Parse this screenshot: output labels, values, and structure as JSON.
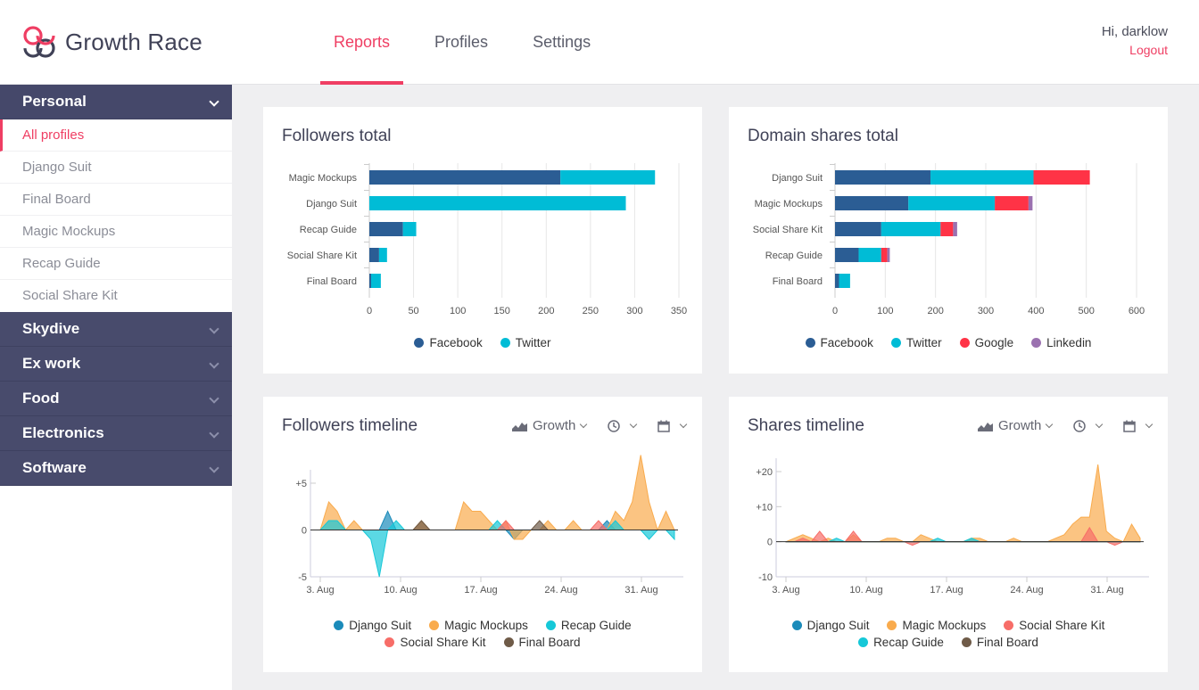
{
  "app": {
    "title": "Growth Race"
  },
  "nav": {
    "tabs": [
      {
        "label": "Reports"
      },
      {
        "label": "Profiles"
      },
      {
        "label": "Settings"
      }
    ]
  },
  "user": {
    "greeting": "Hi, darklow",
    "logout": "Logout"
  },
  "sidebar": {
    "groups": [
      {
        "label": "Personal"
      },
      {
        "label": "Skydive"
      },
      {
        "label": "Ex work"
      },
      {
        "label": "Food"
      },
      {
        "label": "Electronics"
      },
      {
        "label": "Software"
      }
    ],
    "personal_items": [
      {
        "label": "All profiles"
      },
      {
        "label": "Django Suit"
      },
      {
        "label": "Final Board"
      },
      {
        "label": "Magic Mockups"
      },
      {
        "label": "Recap Guide"
      },
      {
        "label": "Social Share Kit"
      }
    ]
  },
  "controls": {
    "growth_label": "Growth"
  },
  "colors": {
    "accent": "#ef3e63",
    "sidebar": "#484b6c",
    "facebook": "#2b5d94",
    "twitter": "#00bcd6",
    "google": "#ff3346",
    "linkedin": "#9b71b0",
    "django": "#1b8bba",
    "magic": "#f9ab4d",
    "recap": "#16c8d8",
    "social": "#f76d68",
    "final": "#6f5b48"
  },
  "cards": {
    "followers_total": {
      "title": "Followers total"
    },
    "domain_shares": {
      "title": "Domain shares total"
    },
    "followers_timeline": {
      "title": "Followers timeline"
    },
    "shares_timeline": {
      "title": "Shares timeline"
    }
  },
  "chart_data": [
    {
      "type": "bar",
      "orientation": "horizontal",
      "stacked": true,
      "title": "Followers total",
      "categories": [
        "Magic Mockups",
        "Django Suit",
        "Recap Guide",
        "Social Share Kit",
        "Final Board"
      ],
      "series": [
        {
          "name": "Facebook",
          "values": [
            216,
            0,
            38,
            11,
            2
          ]
        },
        {
          "name": "Twitter",
          "values": [
            107,
            290,
            15,
            9,
            11
          ]
        }
      ],
      "xticks": [
        0,
        50,
        100,
        150,
        200,
        250,
        300,
        350
      ],
      "xlim": [
        0,
        350
      ],
      "legend": "bottom"
    },
    {
      "type": "bar",
      "orientation": "horizontal",
      "stacked": true,
      "title": "Domain shares total",
      "categories": [
        "Django Suit",
        "Magic Mockups",
        "Social Share Kit",
        "Recap Guide",
        "Final Board"
      ],
      "series": [
        {
          "name": "Facebook",
          "values": [
            190,
            146,
            92,
            47,
            8
          ]
        },
        {
          "name": "Twitter",
          "values": [
            205,
            172,
            118,
            45,
            22
          ]
        },
        {
          "name": "Google",
          "values": [
            112,
            67,
            25,
            12,
            0
          ]
        },
        {
          "name": "Linkedin",
          "values": [
            0,
            8,
            8,
            5,
            0
          ]
        }
      ],
      "xticks": [
        0,
        100,
        200,
        300,
        400,
        500,
        600
      ],
      "xlim": [
        0,
        600
      ],
      "legend": "bottom"
    },
    {
      "type": "area",
      "title": "Followers timeline",
      "x_labels": [
        "3. Aug",
        "10. Aug",
        "17. Aug",
        "24. Aug",
        "31. Aug"
      ],
      "yticks": [
        "+5",
        "0",
        "-5"
      ],
      "ylim": [
        -5,
        5
      ],
      "series": [
        {
          "name": "Django Suit",
          "values": [
            0,
            0,
            0,
            0,
            0,
            0,
            0,
            0,
            2,
            0,
            0,
            0,
            0,
            0,
            0,
            0,
            0,
            0,
            0,
            0,
            0,
            0,
            0,
            -1,
            0,
            0,
            0,
            0,
            0,
            0,
            0,
            0,
            0,
            0,
            1,
            0,
            0,
            0,
            0,
            0,
            0,
            0,
            0
          ]
        },
        {
          "name": "Magic Mockups",
          "values": [
            0,
            3,
            2,
            0,
            1,
            0,
            0,
            0,
            0,
            0,
            0,
            0,
            1,
            0,
            0,
            0,
            0,
            3,
            2,
            2,
            1,
            0,
            1,
            -1,
            -1,
            0,
            0,
            1,
            0,
            0,
            1,
            0,
            0,
            0,
            0,
            2,
            1,
            3,
            8,
            3,
            0,
            2,
            0
          ]
        },
        {
          "name": "Recap Guide",
          "values": [
            0,
            1,
            1,
            0,
            0,
            0,
            -1,
            -5,
            0,
            1,
            0,
            0,
            0,
            0,
            0,
            0,
            0,
            0,
            0,
            0,
            0,
            1,
            0,
            0,
            0,
            0,
            0,
            0,
            0,
            0,
            0,
            0,
            0,
            0,
            0,
            1,
            0,
            0,
            0,
            -1,
            0,
            0,
            -1
          ]
        },
        {
          "name": "Social Share Kit",
          "values": [
            0,
            0,
            0,
            0,
            0,
            0,
            0,
            0,
            0,
            0,
            0,
            0,
            0,
            0,
            0,
            0,
            0,
            0,
            0,
            0,
            0,
            0,
            1,
            0,
            0,
            0,
            0,
            0,
            0,
            0,
            0,
            0,
            0,
            1,
            0,
            0,
            0,
            0,
            0,
            0,
            0,
            0,
            0
          ]
        },
        {
          "name": "Final Board",
          "values": [
            0,
            0,
            0,
            0,
            0,
            0,
            0,
            0,
            0,
            0,
            0,
            0,
            1,
            0,
            0,
            0,
            0,
            0,
            0,
            0,
            0,
            0,
            0,
            0,
            0,
            0,
            1,
            0,
            0,
            0,
            0,
            0,
            0,
            0,
            0,
            0,
            0,
            0,
            0,
            0,
            0,
            0,
            0
          ]
        }
      ],
      "legend": "bottom"
    },
    {
      "type": "area",
      "title": "Shares timeline",
      "x_labels": [
        "3. Aug",
        "10. Aug",
        "17. Aug",
        "24. Aug",
        "31. Aug"
      ],
      "yticks": [
        "+20",
        "+10",
        "0",
        "-10"
      ],
      "ylim": [
        -10,
        20
      ],
      "series": [
        {
          "name": "Django Suit",
          "values": [
            0,
            0,
            0,
            0,
            0,
            0,
            0,
            0,
            0,
            0,
            0,
            0,
            0,
            0,
            0,
            0,
            0,
            0,
            0,
            0,
            0,
            0,
            0,
            0,
            0,
            0,
            0,
            0,
            0,
            0,
            0,
            0,
            0,
            0,
            0,
            0,
            0,
            0,
            0,
            0,
            0,
            0,
            0
          ]
        },
        {
          "name": "Magic Mockups",
          "values": [
            0,
            1,
            2,
            1,
            0,
            1,
            0,
            0,
            2,
            0,
            0,
            0,
            1,
            1,
            0,
            0,
            2,
            1,
            0,
            0,
            0,
            0,
            1,
            1,
            0,
            0,
            0,
            1,
            0,
            0,
            0,
            0,
            1,
            2,
            5,
            7,
            7,
            22,
            3,
            1,
            0,
            5,
            1
          ]
        },
        {
          "name": "Social Share Kit",
          "values": [
            0,
            0,
            1,
            0,
            3,
            0,
            0,
            0,
            3,
            0,
            0,
            0,
            0,
            0,
            0,
            -1,
            0,
            0,
            0,
            0,
            0,
            0,
            0,
            0,
            0,
            0,
            0,
            0,
            0,
            0,
            0,
            0,
            0,
            0,
            0,
            0,
            4,
            0,
            0,
            -1,
            0,
            0,
            0
          ]
        },
        {
          "name": "Recap Guide",
          "values": [
            0,
            0,
            0,
            0,
            0,
            0,
            1,
            0,
            0,
            0,
            0,
            0,
            0,
            0,
            0,
            0,
            0,
            0,
            1,
            0,
            0,
            0,
            1,
            0,
            0,
            0,
            0,
            0,
            0,
            0,
            0,
            0,
            0,
            0,
            0,
            0,
            0,
            0,
            0,
            0,
            0,
            0,
            0
          ]
        },
        {
          "name": "Final Board",
          "values": [
            0,
            0,
            0,
            0,
            0,
            0,
            0,
            0,
            0,
            0,
            0,
            0,
            0,
            0,
            0,
            0,
            0,
            0,
            0,
            0,
            0,
            0,
            0,
            0,
            0,
            0,
            0,
            0,
            0,
            0,
            0,
            0,
            0,
            0,
            0,
            0,
            0,
            0,
            0,
            0,
            0,
            0,
            0
          ]
        }
      ],
      "legend": "bottom"
    }
  ]
}
